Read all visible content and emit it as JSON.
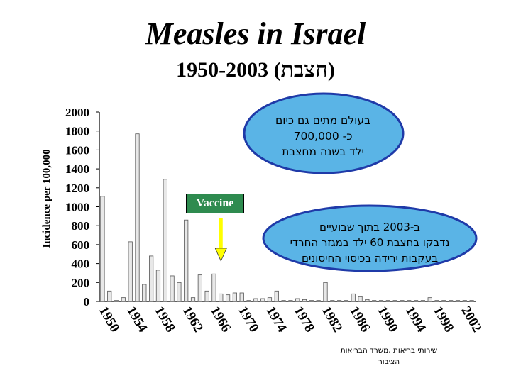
{
  "title": "Measles in Israel",
  "subtitle": "1950-2003 (חצבת)",
  "callout_world": {
    "line1": "בעולם מתים גם כיום",
    "line2": "כ- 700,000",
    "line3": "ילד בשנה מחצבת"
  },
  "callout_2003": {
    "line1": "ב-2003 בתוך שבועיים",
    "line2": "נדבקו בחצבת 60 ילד במגזר החרדי",
    "line3": "בעקבות ירידה בכיסוי החיסונים"
  },
  "vaccine_label": "Vaccine",
  "source_note": {
    "line1": "שירותי בריאות ,משרד הבריאות",
    "line2": "הציבור"
  },
  "colors": {
    "bar_fill": "#e8e8e8",
    "bar_outline": "#555555",
    "callout_fill": "#5ab4e6",
    "callout_stroke": "#1f3aa8",
    "vaccine_box": "#2e8b4f",
    "arrow": "#ffff00"
  },
  "chart_data": {
    "type": "bar",
    "ylabel": "Incidence per 100,000",
    "ylim": [
      0,
      2000
    ],
    "yticks": [
      0,
      200,
      400,
      600,
      800,
      1000,
      1200,
      1400,
      1600,
      1800,
      2000
    ],
    "xtick_labels": [
      "1950",
      "1954",
      "1958",
      "1962",
      "1966",
      "1970",
      "1974",
      "1978",
      "1982",
      "1986",
      "1990",
      "1994",
      "1998",
      "2002"
    ],
    "vaccine_year": 1967,
    "grid": false,
    "x": [
      1950,
      1951,
      1952,
      1953,
      1954,
      1955,
      1956,
      1957,
      1958,
      1959,
      1960,
      1961,
      1962,
      1963,
      1964,
      1965,
      1966,
      1967,
      1968,
      1969,
      1970,
      1971,
      1972,
      1973,
      1974,
      1975,
      1976,
      1977,
      1978,
      1979,
      1980,
      1981,
      1982,
      1983,
      1984,
      1985,
      1986,
      1987,
      1988,
      1989,
      1990,
      1991,
      1992,
      1993,
      1994,
      1995,
      1996,
      1997,
      1998,
      1999,
      2000,
      2001,
      2002,
      2003
    ],
    "values": [
      1110,
      110,
      10,
      40,
      630,
      1770,
      180,
      480,
      330,
      1290,
      270,
      200,
      860,
      40,
      280,
      110,
      290,
      80,
      70,
      90,
      90,
      10,
      30,
      30,
      40,
      110,
      10,
      10,
      30,
      20,
      10,
      10,
      200,
      10,
      10,
      10,
      80,
      50,
      20,
      10,
      10,
      10,
      10,
      10,
      10,
      10,
      10,
      40,
      10,
      10,
      10,
      10,
      10,
      10
    ]
  }
}
